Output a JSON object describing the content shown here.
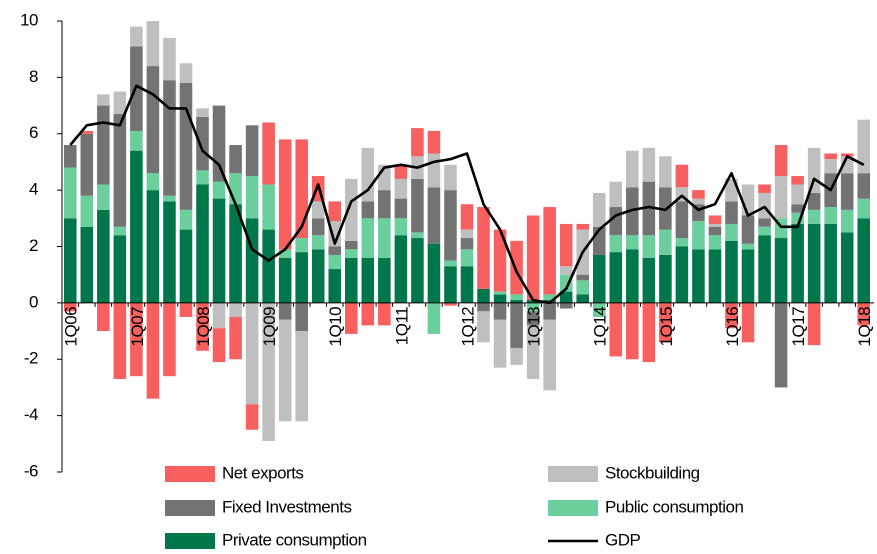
{
  "chart_data": {
    "type": "stacked-bar-line",
    "categories": [
      "1Q06",
      null,
      null,
      null,
      "1Q07",
      null,
      null,
      null,
      "1Q08",
      null,
      null,
      null,
      "1Q09",
      null,
      null,
      null,
      "1Q10",
      null,
      null,
      null,
      "1Q11",
      null,
      null,
      null,
      "1Q12",
      null,
      null,
      null,
      "1Q13",
      null,
      null,
      null,
      "1Q14",
      null,
      null,
      null,
      "1Q15",
      null,
      null,
      null,
      "1Q16",
      null,
      null,
      null,
      "1Q17",
      null,
      null,
      null,
      "1Q18"
    ],
    "series": [
      {
        "name": "Net exports",
        "color": "#f86060",
        "values": [
          -0.3,
          0.1,
          -1.0,
          -2.7,
          -2.6,
          -3.4,
          -2.6,
          -0.5,
          -1.7,
          -1.2,
          -1.5,
          -0.9,
          2.2,
          3.9,
          3.5,
          0.9,
          0.7,
          -1.1,
          -0.8,
          -0.8,
          0.5,
          1.0,
          0.8,
          -0.1,
          0.9,
          2.9,
          2.2,
          1.9,
          3.0,
          3.1,
          1.5,
          0.2,
          0.0,
          -1.9,
          -2.0,
          -2.1,
          -1.4,
          0.8,
          0.3,
          0.3,
          -0.9,
          -1.4,
          0.3,
          1.1,
          0.3,
          -1.5,
          0.2,
          0.1,
          -0.8
        ]
      },
      {
        "name": "Stockbuilding",
        "color": "#bfbfbf",
        "values": [
          0,
          0,
          0.4,
          0.8,
          0.7,
          1.6,
          1.5,
          0.7,
          0.3,
          -0.9,
          -0.5,
          -3.6,
          -4.9,
          -3.6,
          -3.2,
          0.6,
          0.9,
          2.2,
          1.9,
          0.9,
          0.7,
          0.8,
          1.2,
          0.9,
          0.3,
          -1.1,
          -1.7,
          -0.6,
          -1.9,
          -2.5,
          0.3,
          1.6,
          1.2,
          0.9,
          1.3,
          1.2,
          1.1,
          0.5,
          0.2,
          0.1,
          0.8,
          1.1,
          0.9,
          1.5,
          0.7,
          1.6,
          0.5,
          0.6,
          1.9
        ]
      },
      {
        "name": "Fixed Investments",
        "color": "#737373",
        "values": [
          0.8,
          2.2,
          2.8,
          4.0,
          3.0,
          3.8,
          4.1,
          4.5,
          1.9,
          2.7,
          1.0,
          1.8,
          0,
          -0.6,
          -1.0,
          0.6,
          0.3,
          0.3,
          0.6,
          1.0,
          0.7,
          1.9,
          2.0,
          2.5,
          0.4,
          -0.3,
          -0.6,
          -1.6,
          -0.5,
          -0.6,
          -0.2,
          0.2,
          1.0,
          1.0,
          1.7,
          1.9,
          1.5,
          1.3,
          0.6,
          0.3,
          0.8,
          1.0,
          0.3,
          -3.0,
          0.3,
          0.6,
          1.2,
          1.3,
          0.9
        ]
      },
      {
        "name": "Public consumption",
        "color": "#6acf9c",
        "values": [
          1.8,
          1.1,
          0.9,
          0.3,
          0.7,
          0.6,
          0.2,
          0.7,
          0.5,
          0.6,
          1.1,
          1.5,
          1.6,
          0.3,
          0.5,
          0.5,
          0.5,
          0.3,
          1.4,
          1.4,
          0.6,
          0.2,
          -1.1,
          0.2,
          0.6,
          0.0,
          0.1,
          0.2,
          -0.3,
          0.2,
          0.6,
          0.5,
          -0.5,
          0.6,
          0.5,
          0.8,
          0.9,
          0.3,
          1.0,
          0.5,
          0.6,
          0.2,
          0.3,
          0.7,
          0.4,
          0.5,
          0.6,
          0.8,
          0.7
        ]
      },
      {
        "name": "Private consumption",
        "color": "#00774a",
        "values": [
          3.0,
          2.7,
          3.3,
          2.4,
          5.4,
          4.0,
          3.6,
          2.6,
          4.2,
          3.7,
          3.5,
          3.0,
          2.6,
          1.6,
          1.8,
          1.9,
          1.2,
          1.6,
          1.6,
          1.6,
          2.4,
          2.3,
          2.1,
          1.3,
          1.3,
          0.5,
          0.3,
          0.1,
          0.1,
          0.1,
          0.4,
          0.3,
          1.7,
          1.8,
          1.9,
          1.6,
          1.7,
          2.0,
          1.9,
          1.9,
          2.2,
          1.9,
          2.4,
          2.3,
          2.8,
          2.8,
          2.8,
          2.5,
          3.0
        ]
      },
      {
        "name": "GDP",
        "color": "#000000",
        "kind": "line",
        "values": [
          5.6,
          6.3,
          6.4,
          6.3,
          7.7,
          7.4,
          6.9,
          6.9,
          5.4,
          4.9,
          3.5,
          1.9,
          1.5,
          1.9,
          2.7,
          4.2,
          2.1,
          3.6,
          4.0,
          4.8,
          4.9,
          4.8,
          5.0,
          5.1,
          5.3,
          3.5,
          2.6,
          1.1,
          0.1,
          0.0,
          0.5,
          1.8,
          2.6,
          3.1,
          3.3,
          3.4,
          3.3,
          3.8,
          3.3,
          3.5,
          4.6,
          3.1,
          3.4,
          2.7,
          2.7,
          4.4,
          4.0,
          5.2,
          4.9
        ]
      }
    ],
    "ylim": [
      -6,
      10
    ],
    "yticks": [
      -6,
      -4,
      -2,
      0,
      2,
      4,
      6,
      8,
      10
    ]
  }
}
